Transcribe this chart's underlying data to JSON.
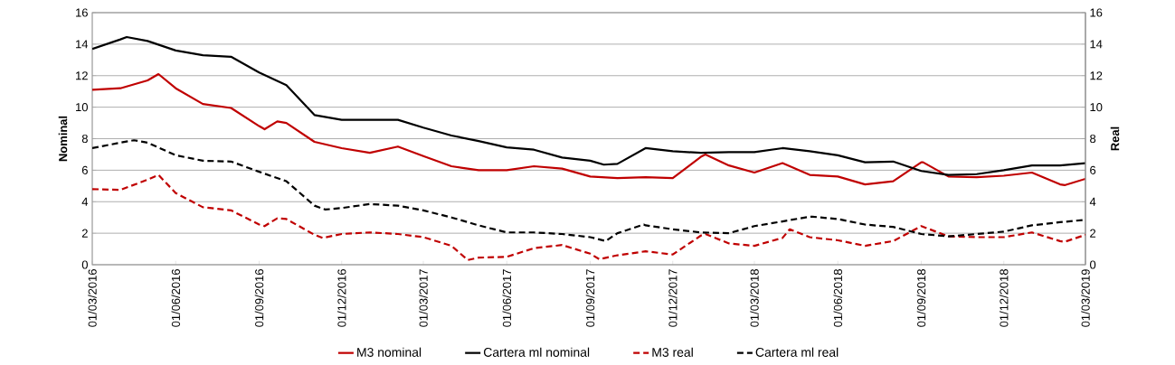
{
  "chart_data": {
    "type": "line",
    "ylabel": "Nominal",
    "y2label": "Real",
    "xlim": [
      "2016-03-01",
      "2019-03-01"
    ],
    "xticks": [
      {
        "value": "2016-03-01",
        "label": "01/03/2016"
      },
      {
        "value": "2016-06-01",
        "label": "01/06/2016"
      },
      {
        "value": "2016-09-01",
        "label": "01/09/2016"
      },
      {
        "value": "2016-12-01",
        "label": "01/12/2016"
      },
      {
        "value": "2017-03-01",
        "label": "01/03/2017"
      },
      {
        "value": "2017-06-01",
        "label": "01/06/2017"
      },
      {
        "value": "2017-09-01",
        "label": "01/09/2017"
      },
      {
        "value": "2017-12-01",
        "label": "01/12/2017"
      },
      {
        "value": "2018-03-01",
        "label": "01/03/2018"
      },
      {
        "value": "2018-06-01",
        "label": "01/06/2018"
      },
      {
        "value": "2018-09-01",
        "label": "01/09/2018"
      },
      {
        "value": "2018-12-01",
        "label": "01/12/2018"
      },
      {
        "value": "2019-03-01",
        "label": "01/03/2019"
      }
    ],
    "ylim": [
      0,
      16
    ],
    "yticks": [
      0,
      2,
      4,
      6,
      8,
      10,
      12,
      14,
      16
    ],
    "y2lim": [
      0,
      16
    ],
    "y2ticks": [
      0,
      2,
      4,
      6,
      8,
      10,
      12,
      14,
      16
    ],
    "grid": "y",
    "legend": "bottom",
    "marker": "none",
    "series": [
      {
        "name": "M3 nominal",
        "color": "#c00000",
        "line_style": "solid",
        "x": [
          "2016-03-01",
          "2016-04-01",
          "2016-05-01",
          "2016-05-13",
          "2016-06-01",
          "2016-07-01",
          "2016-08-01",
          "2016-09-01",
          "2016-09-07",
          "2016-09-21",
          "2016-10-01",
          "2016-11-01",
          "2016-12-01",
          "2017-01-01",
          "2017-02-01",
          "2017-03-01",
          "2017-04-01",
          "2017-05-01",
          "2017-06-01",
          "2017-07-01",
          "2017-08-01",
          "2017-09-01",
          "2017-10-01",
          "2017-11-01",
          "2017-12-01",
          "2018-01-01",
          "2018-01-06",
          "2018-02-01",
          "2018-03-01",
          "2018-04-01",
          "2018-05-01",
          "2018-06-01",
          "2018-07-01",
          "2018-08-01",
          "2018-09-01",
          "2018-09-03",
          "2018-10-01",
          "2018-11-01",
          "2018-12-01",
          "2019-01-01",
          "2019-02-01",
          "2019-02-06",
          "2019-03-01"
        ],
        "values": [
          11.1,
          11.2,
          11.7,
          12.1,
          11.2,
          10.2,
          9.95,
          8.8,
          8.6,
          9.1,
          9.0,
          7.8,
          7.4,
          7.1,
          7.5,
          6.9,
          6.25,
          6.0,
          6.0,
          6.25,
          6.1,
          5.6,
          5.5,
          5.55,
          5.5,
          6.85,
          7.0,
          6.3,
          5.85,
          6.45,
          5.7,
          5.6,
          5.1,
          5.3,
          6.5,
          6.5,
          5.6,
          5.55,
          5.65,
          5.85,
          5.1,
          5.05,
          5.45
        ]
      },
      {
        "name": "Cartera ml nominal",
        "color": "#000000",
        "line_style": "solid",
        "x": [
          "2016-03-01",
          "2016-04-01",
          "2016-04-08",
          "2016-05-01",
          "2016-06-01",
          "2016-07-01",
          "2016-08-01",
          "2016-09-01",
          "2016-10-01",
          "2016-11-01",
          "2016-12-01",
          "2017-01-01",
          "2017-02-01",
          "2017-03-01",
          "2017-04-01",
          "2017-05-01",
          "2017-06-01",
          "2017-07-01",
          "2017-08-01",
          "2017-09-01",
          "2017-09-16",
          "2017-10-01",
          "2017-11-01",
          "2017-12-01",
          "2018-01-01",
          "2018-02-01",
          "2018-03-01",
          "2018-04-01",
          "2018-05-01",
          "2018-06-01",
          "2018-07-01",
          "2018-08-01",
          "2018-09-01",
          "2018-10-01",
          "2018-11-01",
          "2018-12-01",
          "2019-01-01",
          "2019-02-01",
          "2019-03-01"
        ],
        "values": [
          13.7,
          14.3,
          14.45,
          14.2,
          13.6,
          13.3,
          13.2,
          12.2,
          11.4,
          9.5,
          9.2,
          9.2,
          9.2,
          8.7,
          8.2,
          7.85,
          7.45,
          7.3,
          6.8,
          6.6,
          6.35,
          6.4,
          7.4,
          7.2,
          7.1,
          7.15,
          7.15,
          7.4,
          7.2,
          6.95,
          6.5,
          6.55,
          5.95,
          5.7,
          5.75,
          6.0,
          6.3,
          6.3,
          6.45
        ]
      },
      {
        "name": "M3 real",
        "color": "#c00000",
        "line_style": "dashed",
        "axis": "y2",
        "x": [
          "2016-03-01",
          "2016-04-01",
          "2016-05-01",
          "2016-05-13",
          "2016-06-01",
          "2016-07-01",
          "2016-08-01",
          "2016-09-01",
          "2016-09-07",
          "2016-09-21",
          "2016-10-01",
          "2016-11-01",
          "2016-11-10",
          "2016-12-01",
          "2017-01-01",
          "2017-02-01",
          "2017-03-01",
          "2017-04-01",
          "2017-04-19",
          "2017-05-01",
          "2017-06-01",
          "2017-07-01",
          "2017-08-01",
          "2017-09-01",
          "2017-09-11",
          "2017-10-01",
          "2017-11-01",
          "2017-12-01",
          "2018-01-01",
          "2018-01-06",
          "2018-02-01",
          "2018-03-01",
          "2018-04-01",
          "2018-04-09",
          "2018-05-01",
          "2018-06-01",
          "2018-07-01",
          "2018-08-01",
          "2018-09-01",
          "2018-10-01",
          "2018-11-01",
          "2018-12-01",
          "2019-01-01",
          "2019-02-01",
          "2019-02-06",
          "2019-03-01"
        ],
        "values": [
          4.8,
          4.75,
          5.4,
          5.7,
          4.55,
          3.65,
          3.45,
          2.55,
          2.45,
          2.95,
          2.9,
          1.9,
          1.7,
          1.95,
          2.05,
          1.95,
          1.75,
          1.2,
          0.3,
          0.45,
          0.5,
          1.05,
          1.25,
          0.7,
          0.35,
          0.6,
          0.85,
          0.65,
          1.85,
          1.95,
          1.35,
          1.2,
          1.7,
          2.25,
          1.75,
          1.55,
          1.2,
          1.5,
          2.45,
          1.8,
          1.75,
          1.75,
          2.05,
          1.5,
          1.45,
          1.9
        ]
      },
      {
        "name": "Cartera ml real",
        "color": "#000000",
        "line_style": "dashed",
        "axis": "y2",
        "x": [
          "2016-03-01",
          "2016-04-01",
          "2016-04-16",
          "2016-05-01",
          "2016-06-01",
          "2016-07-01",
          "2016-08-01",
          "2016-09-01",
          "2016-10-01",
          "2016-11-01",
          "2016-11-13",
          "2016-12-01",
          "2017-01-01",
          "2017-02-01",
          "2017-03-01",
          "2017-04-01",
          "2017-05-01",
          "2017-06-01",
          "2017-07-01",
          "2017-08-01",
          "2017-09-01",
          "2017-09-18",
          "2017-10-01",
          "2017-10-30",
          "2017-11-01",
          "2017-12-01",
          "2018-01-01",
          "2018-02-01",
          "2018-03-01",
          "2018-04-01",
          "2018-05-01",
          "2018-05-04",
          "2018-06-01",
          "2018-07-01",
          "2018-08-01",
          "2018-09-01",
          "2018-10-01",
          "2018-11-01",
          "2018-12-01",
          "2019-01-01",
          "2019-02-01",
          "2019-03-01"
        ],
        "values": [
          7.4,
          7.75,
          7.9,
          7.75,
          6.95,
          6.6,
          6.55,
          5.9,
          5.3,
          3.75,
          3.5,
          3.6,
          3.85,
          3.75,
          3.45,
          3.0,
          2.5,
          2.05,
          2.05,
          1.95,
          1.75,
          1.5,
          2.0,
          2.55,
          2.5,
          2.25,
          2.05,
          2.0,
          2.45,
          2.75,
          3.05,
          3.05,
          2.9,
          2.55,
          2.4,
          1.95,
          1.8,
          1.95,
          2.1,
          2.5,
          2.7,
          2.85
        ]
      }
    ]
  }
}
